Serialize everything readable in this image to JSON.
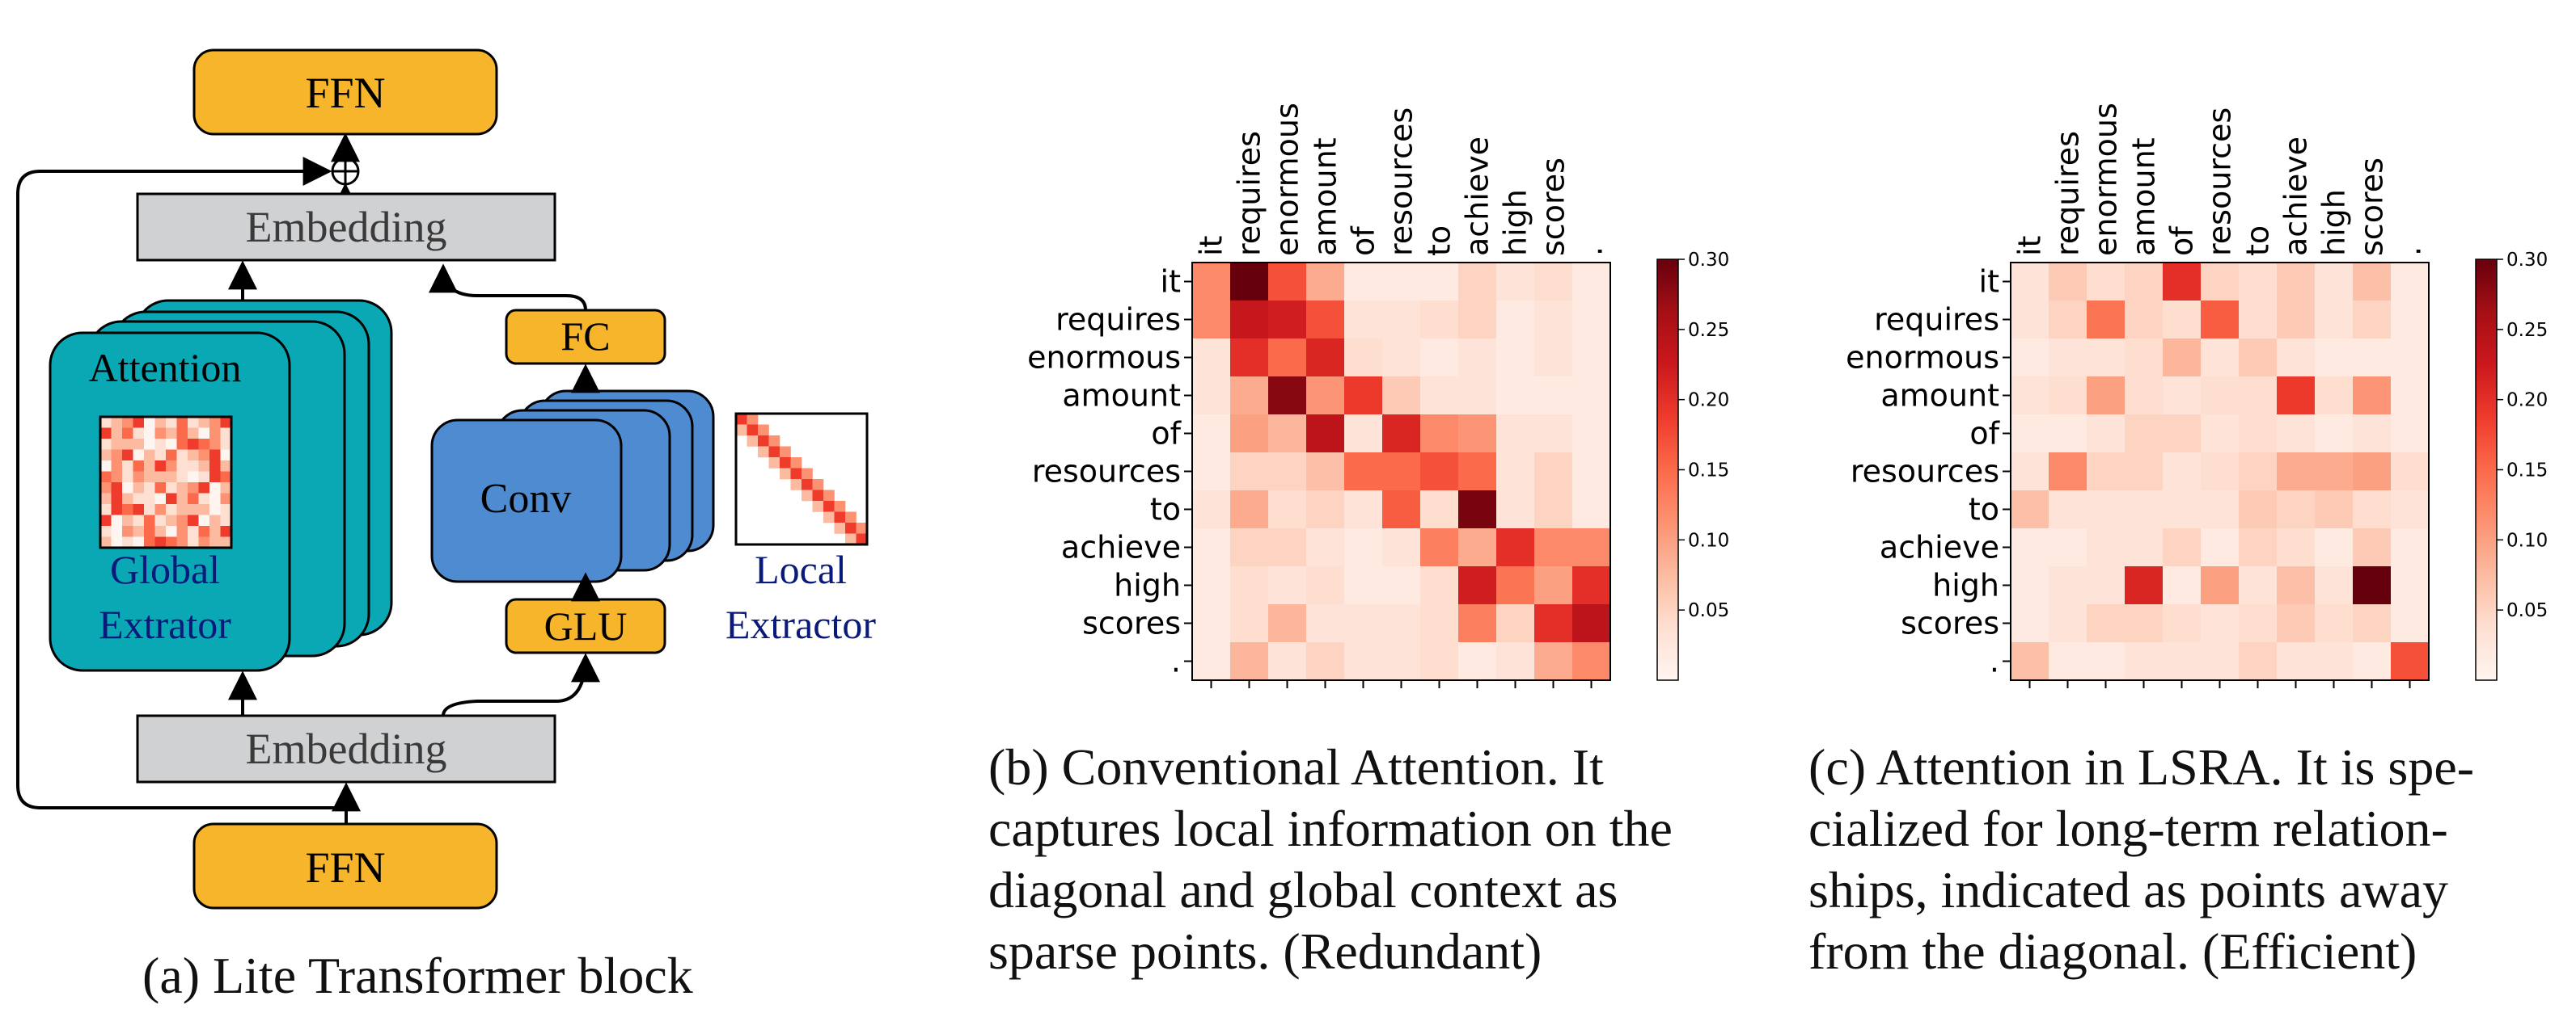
{
  "diagram": {
    "ffn_top": "FFN",
    "ffn_bottom": "FFN",
    "embedding_top": "Embedding",
    "embedding_bottom": "Embedding",
    "attention_label": "Attention",
    "global_line1": "Global",
    "global_line2": "Extrator",
    "fc": "FC",
    "conv": "Conv",
    "glu": "GLU",
    "local_line1": "Local",
    "local_line2": "Extractor",
    "plus_symbol": "⊕",
    "colors": {
      "ffn": "#f7b52c",
      "embedding": "#d0d1d3",
      "attention": "#0aa8b5",
      "conv": "#4f8bd0",
      "global_text": "#0a1a7a",
      "local_text": "#0a1a7a"
    }
  },
  "chart_data": [
    {
      "type": "heatmap",
      "tokens": [
        "it",
        "requires",
        "enormous",
        "amount",
        "of",
        "resources",
        "to",
        "achieve",
        "high",
        "scores",
        "."
      ],
      "colorbar": {
        "ticks": [
          "0.30",
          "0.25",
          "0.20",
          "0.15",
          "0.10",
          "0.05"
        ],
        "vmin": 0.0,
        "vmax": 0.3,
        "cmap": "Reds"
      },
      "values": [
        [
          0.12,
          0.3,
          0.17,
          0.09,
          0.02,
          0.02,
          0.02,
          0.05,
          0.03,
          0.04,
          0.02
        ],
        [
          0.12,
          0.23,
          0.22,
          0.17,
          0.03,
          0.03,
          0.04,
          0.05,
          0.02,
          0.03,
          0.02
        ],
        [
          0.03,
          0.2,
          0.15,
          0.21,
          0.04,
          0.03,
          0.02,
          0.03,
          0.02,
          0.03,
          0.02
        ],
        [
          0.03,
          0.09,
          0.28,
          0.11,
          0.19,
          0.06,
          0.03,
          0.03,
          0.02,
          0.02,
          0.02
        ],
        [
          0.02,
          0.1,
          0.08,
          0.24,
          0.03,
          0.21,
          0.12,
          0.11,
          0.03,
          0.03,
          0.02
        ],
        [
          0.02,
          0.05,
          0.05,
          0.07,
          0.15,
          0.15,
          0.17,
          0.15,
          0.03,
          0.05,
          0.02
        ],
        [
          0.03,
          0.09,
          0.04,
          0.05,
          0.03,
          0.16,
          0.04,
          0.29,
          0.03,
          0.05,
          0.02
        ],
        [
          0.02,
          0.05,
          0.05,
          0.03,
          0.02,
          0.03,
          0.13,
          0.09,
          0.2,
          0.12,
          0.12
        ],
        [
          0.02,
          0.04,
          0.03,
          0.04,
          0.02,
          0.02,
          0.04,
          0.22,
          0.14,
          0.1,
          0.2
        ],
        [
          0.02,
          0.04,
          0.08,
          0.03,
          0.03,
          0.03,
          0.04,
          0.13,
          0.05,
          0.2,
          0.24
        ],
        [
          0.02,
          0.08,
          0.03,
          0.05,
          0.03,
          0.03,
          0.04,
          0.02,
          0.03,
          0.09,
          0.12
        ]
      ]
    },
    {
      "type": "heatmap",
      "tokens": [
        "it",
        "requires",
        "enormous",
        "amount",
        "of",
        "resources",
        "to",
        "achieve",
        "high",
        "scores",
        "."
      ],
      "colorbar": {
        "ticks": [
          "0.30",
          "0.25",
          "0.20",
          "0.15",
          "0.10",
          "0.05"
        ],
        "vmin": 0.0,
        "vmax": 0.3,
        "cmap": "Reds"
      },
      "values": [
        [
          0.03,
          0.06,
          0.04,
          0.05,
          0.2,
          0.05,
          0.04,
          0.06,
          0.03,
          0.07,
          0.02
        ],
        [
          0.03,
          0.05,
          0.14,
          0.05,
          0.04,
          0.16,
          0.04,
          0.06,
          0.03,
          0.05,
          0.02
        ],
        [
          0.02,
          0.03,
          0.03,
          0.04,
          0.08,
          0.03,
          0.06,
          0.03,
          0.02,
          0.02,
          0.02
        ],
        [
          0.03,
          0.04,
          0.1,
          0.04,
          0.03,
          0.04,
          0.04,
          0.19,
          0.04,
          0.11,
          0.02
        ],
        [
          0.02,
          0.02,
          0.03,
          0.05,
          0.05,
          0.03,
          0.04,
          0.03,
          0.02,
          0.03,
          0.02
        ],
        [
          0.03,
          0.12,
          0.05,
          0.05,
          0.03,
          0.04,
          0.05,
          0.09,
          0.09,
          0.1,
          0.04
        ],
        [
          0.07,
          0.03,
          0.03,
          0.03,
          0.03,
          0.03,
          0.06,
          0.05,
          0.06,
          0.04,
          0.03
        ],
        [
          0.02,
          0.02,
          0.03,
          0.03,
          0.05,
          0.02,
          0.05,
          0.04,
          0.02,
          0.06,
          0.02
        ],
        [
          0.02,
          0.03,
          0.03,
          0.21,
          0.02,
          0.1,
          0.03,
          0.07,
          0.03,
          0.3,
          0.02
        ],
        [
          0.02,
          0.03,
          0.05,
          0.05,
          0.04,
          0.03,
          0.04,
          0.06,
          0.04,
          0.05,
          0.02
        ],
        [
          0.07,
          0.02,
          0.02,
          0.03,
          0.03,
          0.03,
          0.05,
          0.03,
          0.03,
          0.02,
          0.17
        ]
      ]
    }
  ],
  "captions": {
    "a": [
      "(a) Lite Transformer block"
    ],
    "b": [
      "(b) Conventional Attention.  It",
      "captures local information on the",
      "diagonal and global context as",
      "sparse points. (Redundant)"
    ],
    "c": [
      "(c) Attention in LSRA. It is spe-",
      "cialized for long-term relation-",
      "ships, indicated as points away",
      "from the diagonal. (Efficient)"
    ]
  }
}
